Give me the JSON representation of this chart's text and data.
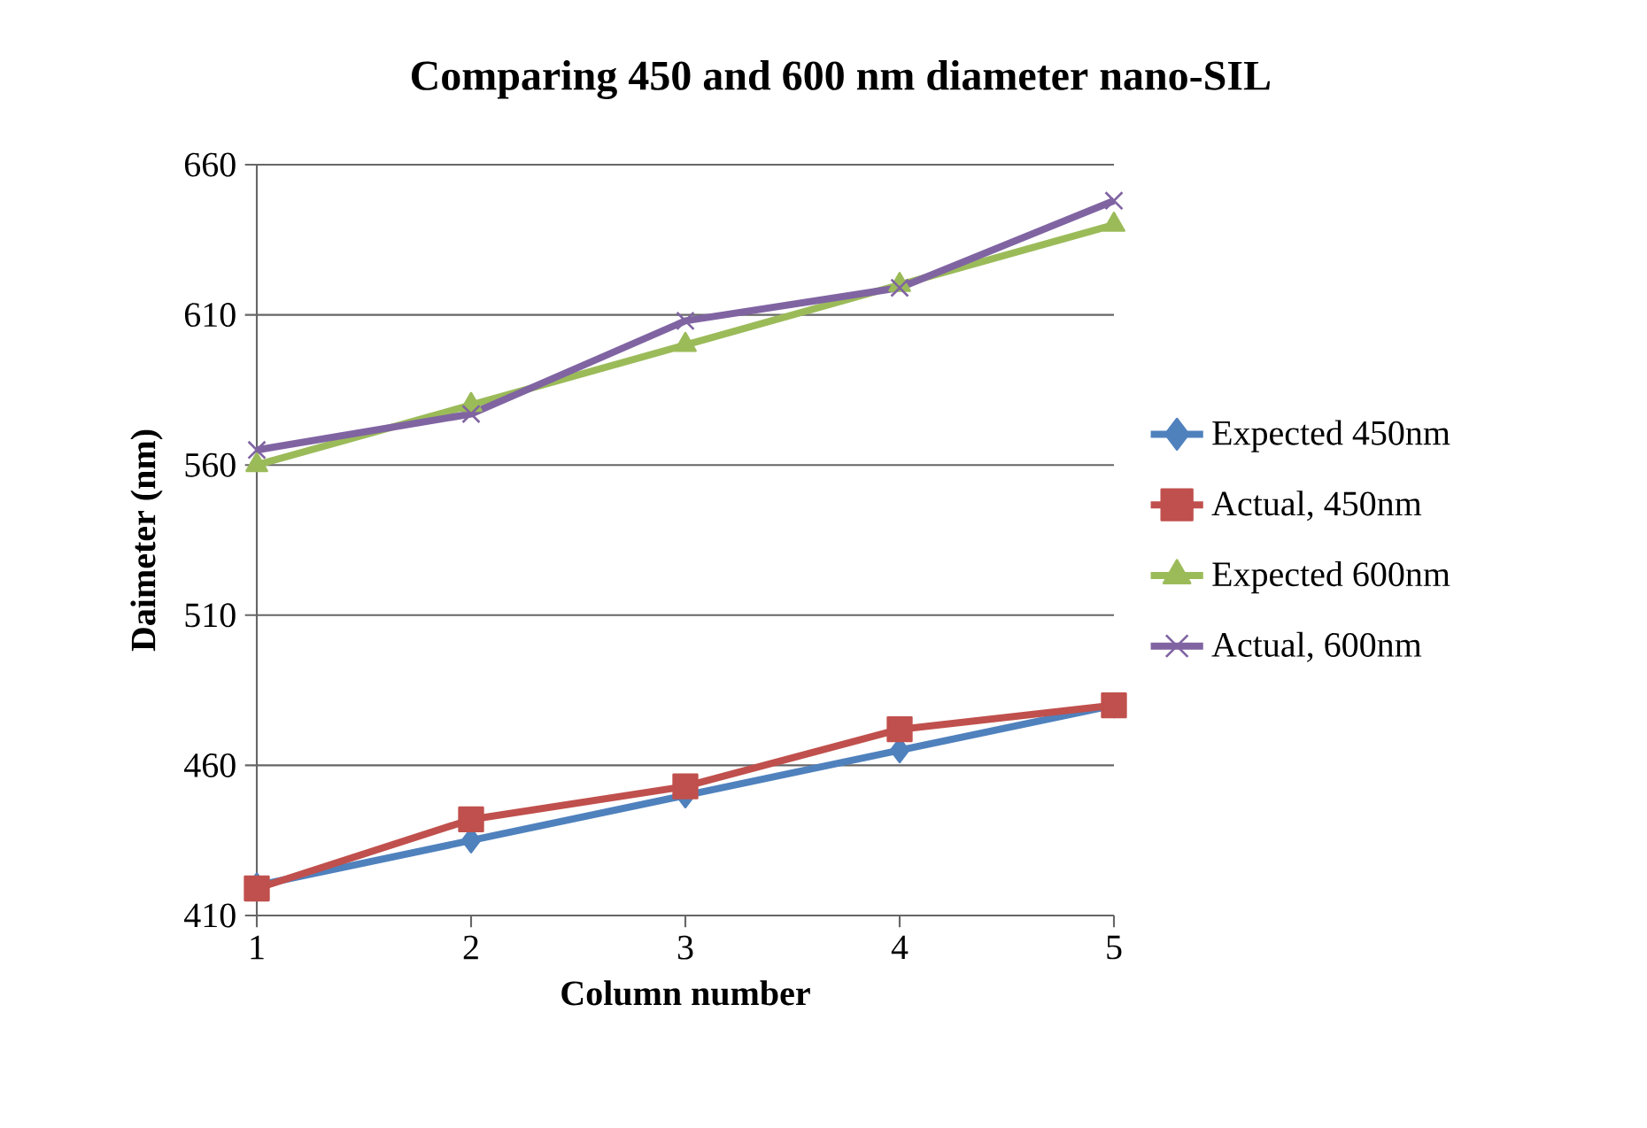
{
  "chart_data": {
    "type": "line",
    "title": "Comparing 450 and 600 nm diameter nano-SIL",
    "xlabel": "Column number",
    "ylabel": "Daimeter (nm)",
    "x": [
      1,
      2,
      3,
      4,
      5
    ],
    "series": [
      {
        "name": "Expected 450nm",
        "color": "#4f81bd",
        "marker": "diamond",
        "values": [
          420,
          435,
          450,
          465,
          480
        ]
      },
      {
        "name": "Actual, 450nm",
        "color": "#c0504d",
        "marker": "square",
        "values": [
          419,
          442,
          453,
          472,
          480
        ]
      },
      {
        "name": "Expected 600nm",
        "color": "#9bbb59",
        "marker": "triangle",
        "values": [
          560,
          580,
          600,
          620,
          640
        ]
      },
      {
        "name": "Actual, 600nm",
        "color": "#8064a2",
        "marker": "cross",
        "values": [
          565,
          577,
          608,
          619,
          648
        ]
      }
    ],
    "xlim": [
      1,
      5
    ],
    "xticks": [
      1,
      2,
      3,
      4,
      5
    ],
    "ylim": [
      410,
      660
    ],
    "yticks": [
      410,
      460,
      510,
      560,
      610,
      660
    ],
    "grid": "y",
    "legend": "right",
    "line_style": "solid"
  }
}
